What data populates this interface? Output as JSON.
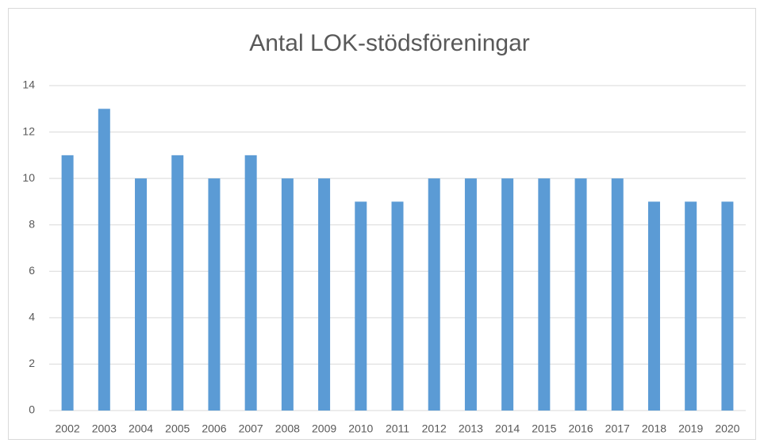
{
  "chart_data": {
    "type": "bar",
    "title": "Antal LOK-stödsföreningar",
    "categories": [
      "2002",
      "2003",
      "2004",
      "2005",
      "2006",
      "2007",
      "2008",
      "2009",
      "2010",
      "2011",
      "2012",
      "2013",
      "2014",
      "2015",
      "2016",
      "2017",
      "2018",
      "2019",
      "2020"
    ],
    "values": [
      11,
      13,
      10,
      11,
      10,
      11,
      10,
      10,
      9,
      9,
      10,
      10,
      10,
      10,
      10,
      10,
      9,
      9,
      9
    ],
    "color": "#5b9bd5",
    "ylim": [
      0,
      14
    ],
    "yticks": [
      0,
      2,
      4,
      6,
      8,
      10,
      12,
      14
    ],
    "grid": true
  }
}
